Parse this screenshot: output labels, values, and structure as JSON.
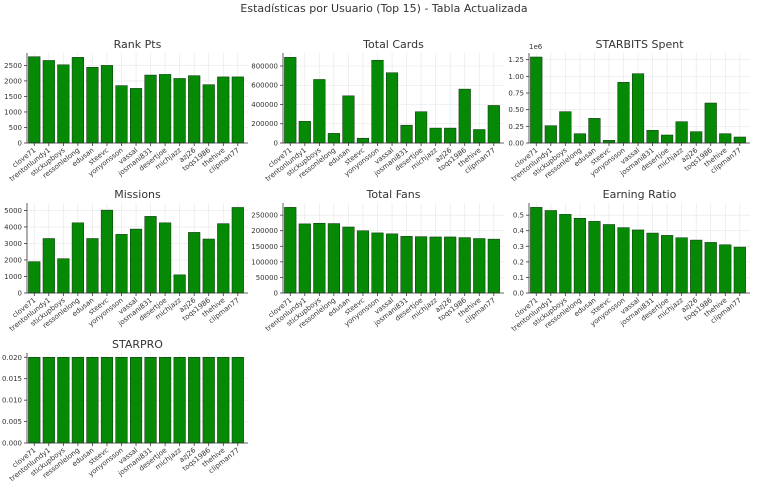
{
  "figure_title": "Estadísticas por Usuario (Top 15) - Tabla Actualizada",
  "colors": {
    "bar": "#068a06",
    "bar_edge": "#0b2e0b",
    "grid": "#e6e6e6",
    "text": "#333333"
  },
  "chart_data": [
    {
      "type": "bar",
      "title": "Rank Pts",
      "categories": [
        "clove71",
        "trentonlundy1",
        "stickupboys",
        "ressonlelong",
        "edusan",
        "steevc",
        "yonyonsson",
        "vassal",
        "josmani831",
        "desertjoe",
        "michjazz",
        "azj26",
        "toqs1986",
        "thehive",
        "clipman77"
      ],
      "values": [
        2780,
        2660,
        2520,
        2760,
        2440,
        2500,
        1850,
        1760,
        2190,
        2210,
        2080,
        2170,
        1880,
        2130,
        2130
      ],
      "ylim": [
        0,
        2900
      ],
      "yticks": [
        0,
        500,
        1000,
        1500,
        2000,
        2500
      ],
      "ytick_labels": [
        "0",
        "500",
        "1000",
        "1500",
        "2000",
        "2500"
      ],
      "offset": "",
      "grid": true
    },
    {
      "type": "bar",
      "title": "Total Cards",
      "categories": [
        "clove71",
        "trentonlundy1",
        "stickupboys",
        "ressonlelong",
        "edusan",
        "steevc",
        "yonyonsson",
        "vassal",
        "josmani831",
        "desertjoe",
        "michjazz",
        "azj26",
        "toqs1986",
        "thehive",
        "clipman77"
      ],
      "values": [
        890000,
        225000,
        660000,
        100000,
        490000,
        50000,
        860000,
        730000,
        185000,
        325000,
        155000,
        155000,
        560000,
        140000,
        390000
      ],
      "ylim": [
        0,
        935000
      ],
      "yticks": [
        0,
        200000,
        400000,
        600000,
        800000
      ],
      "ytick_labels": [
        "0",
        "200000",
        "400000",
        "600000",
        "800000"
      ],
      "offset": "",
      "grid": true
    },
    {
      "type": "bar",
      "title": "STARBITS Spent",
      "categories": [
        "clove71",
        "trentonlundy1",
        "stickupboys",
        "ressonlelong",
        "edusan",
        "steevc",
        "yonyonsson",
        "vassal",
        "josmani831",
        "desertjoe",
        "michjazz",
        "azj26",
        "toqs1986",
        "thehive",
        "clipman77"
      ],
      "values": [
        1.29,
        0.26,
        0.47,
        0.14,
        0.37,
        0.04,
        0.91,
        1.04,
        0.19,
        0.12,
        0.32,
        0.17,
        0.6,
        0.14,
        0.09
      ],
      "ylim": [
        0,
        1.35
      ],
      "yticks": [
        0,
        0.25,
        0.5,
        0.75,
        1.0,
        1.25
      ],
      "ytick_labels": [
        "0.00",
        "0.25",
        "0.50",
        "0.75",
        "1.00",
        "1.25"
      ],
      "offset": "1e6",
      "grid": true
    },
    {
      "type": "bar",
      "title": "Missions",
      "categories": [
        "clove71",
        "trentonlundy1",
        "stickupboys",
        "ressonlelong",
        "edusan",
        "steevc",
        "yonyonsson",
        "vassal",
        "josmani831",
        "desertjoe",
        "michjazz",
        "azj26",
        "toqs1986",
        "thehive",
        "clipman77"
      ],
      "values": [
        1900,
        3300,
        2080,
        4250,
        3300,
        5020,
        3550,
        3870,
        4640,
        4250,
        1100,
        3670,
        3270,
        4200,
        5180
      ],
      "ylim": [
        0,
        5450
      ],
      "yticks": [
        0,
        1000,
        2000,
        3000,
        4000,
        5000
      ],
      "ytick_labels": [
        "0",
        "1000",
        "2000",
        "3000",
        "4000",
        "5000"
      ],
      "offset": "",
      "grid": true
    },
    {
      "type": "bar",
      "title": "Total Fans",
      "categories": [
        "clove71",
        "trentonlundy1",
        "stickupboys",
        "ressonlelong",
        "edusan",
        "steevc",
        "yonyonsson",
        "vassal",
        "josmani831",
        "desertjoe",
        "michjazz",
        "azj26",
        "toqs1986",
        "thehive",
        "clipman77"
      ],
      "values": [
        275000,
        222000,
        224000,
        223000,
        212000,
        200000,
        193000,
        190000,
        182000,
        181000,
        180000,
        180000,
        178000,
        175000,
        173000
      ],
      "ylim": [
        0,
        289000
      ],
      "yticks": [
        0,
        50000,
        100000,
        150000,
        200000,
        250000
      ],
      "ytick_labels": [
        "0",
        "50000",
        "100000",
        "150000",
        "200000",
        "250000"
      ],
      "offset": "",
      "grid": true
    },
    {
      "type": "bar",
      "title": "Earning Ratio",
      "categories": [
        "clove71",
        "trentonlundy1",
        "stickupboys",
        "ressonlelong",
        "edusan",
        "steevc",
        "yonyonsson",
        "vassal",
        "josmani831",
        "desertjoe",
        "michjazz",
        "azj26",
        "toqs1986",
        "thehive",
        "clipman77"
      ],
      "values": [
        0.55,
        0.53,
        0.505,
        0.48,
        0.46,
        0.44,
        0.42,
        0.405,
        0.385,
        0.37,
        0.355,
        0.34,
        0.325,
        0.31,
        0.295
      ],
      "ylim": [
        0,
        0.578
      ],
      "yticks": [
        0,
        0.1,
        0.2,
        0.3,
        0.4,
        0.5
      ],
      "ytick_labels": [
        "0.0",
        "0.1",
        "0.2",
        "0.3",
        "0.4",
        "0.5"
      ],
      "offset": "",
      "grid": true
    },
    {
      "type": "bar",
      "title": "STARPRO",
      "categories": [
        "clove71",
        "trentonlundy1",
        "stickupboys",
        "ressonlelong",
        "edusan",
        "steevc",
        "yonyonsson",
        "vassal",
        "josmani831",
        "desertjoe",
        "michjazz",
        "azj26",
        "toqs1986",
        "thehive",
        "clipman77"
      ],
      "values": [
        0.02,
        0.02,
        0.02,
        0.02,
        0.02,
        0.02,
        0.02,
        0.02,
        0.02,
        0.02,
        0.02,
        0.02,
        0.02,
        0.02,
        0.02
      ],
      "ylim": [
        0,
        0.021
      ],
      "yticks": [
        0,
        0.005,
        0.01,
        0.015,
        0.02
      ],
      "ytick_labels": [
        "0.000",
        "0.005",
        "0.010",
        "0.015",
        "0.020"
      ],
      "offset": "",
      "grid": true
    }
  ]
}
